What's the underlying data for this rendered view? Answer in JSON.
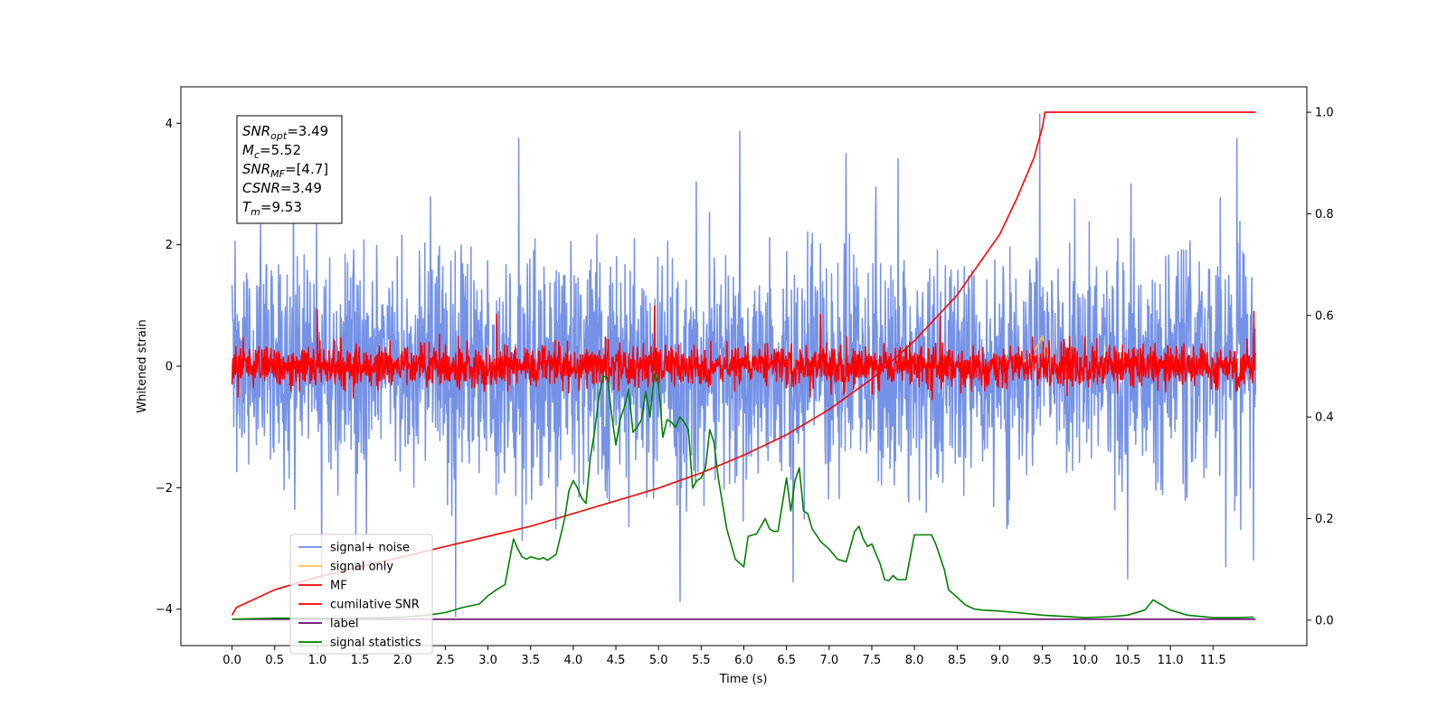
{
  "chart_data": {
    "type": "line",
    "xlabel": "Time (s)",
    "ylabel": "Whitened strain",
    "xlim": [
      -0.6,
      12.6
    ],
    "ylim": [
      -4.6,
      4.6
    ],
    "y2lim": [
      -0.05,
      1.05
    ],
    "x_ticks": [
      0.0,
      0.5,
      1.0,
      1.5,
      2.0,
      2.5,
      3.0,
      3.5,
      4.0,
      4.5,
      5.0,
      5.5,
      6.0,
      6.5,
      7.0,
      7.5,
      8.0,
      8.5,
      9.0,
      9.5,
      10.0,
      10.5,
      11.0,
      11.5
    ],
    "x_tick_labels": [
      "0.0",
      "0.5",
      "1.0",
      "1.5",
      "2.0",
      "2.5",
      "3.0",
      "3.5",
      "4.0",
      "4.5",
      "5.0",
      "5.5",
      "6.0",
      "6.5",
      "7.0",
      "7.5",
      "8.0",
      "8.5",
      "9.0",
      "9.5",
      "10.0",
      "10.5",
      "11.0",
      "11.5"
    ],
    "y_ticks": [
      -4,
      -2,
      0,
      2,
      4
    ],
    "y_tick_labels": [
      "−4",
      "−2",
      "0",
      "2",
      "4"
    ],
    "y2_ticks": [
      0.0,
      0.2,
      0.4,
      0.6,
      0.8,
      1.0
    ],
    "y2_tick_labels": [
      "0.0",
      "0.2",
      "0.4",
      "0.6",
      "0.8",
      "1.0"
    ],
    "legend_position": "lower-left",
    "series": [
      {
        "name": "signal+ noise",
        "color": "#6d8ce6",
        "axis": "left",
        "kind": "noise",
        "x_range": [
          0.0,
          12.0
        ],
        "std": 0.95,
        "samples": 2400,
        "spikes": [
          [
            0.72,
            3.3
          ],
          [
            1.05,
            -3.5
          ],
          [
            1.45,
            -2.9
          ],
          [
            2.62,
            -4.12
          ],
          [
            3.36,
            3.75
          ],
          [
            5.25,
            -3.87
          ],
          [
            5.95,
            3.87
          ],
          [
            6.58,
            -3.55
          ],
          [
            9.47,
            4.15
          ],
          [
            10.5,
            -3.5
          ],
          [
            11.65,
            -3.3
          ],
          [
            7.2,
            3.5
          ]
        ]
      },
      {
        "name": "signal only",
        "color": "#ffc14d",
        "axis": "left",
        "x": [
          9.2,
          9.35,
          9.45,
          9.5,
          9.53,
          9.6
        ],
        "y": [
          0.0,
          0.15,
          0.35,
          0.5,
          0.2,
          0.0
        ]
      },
      {
        "name": "MF",
        "color": "#ff0000",
        "axis": "left",
        "kind": "noise",
        "x_range": [
          0.0,
          12.0
        ],
        "std": 0.17,
        "samples": 2400,
        "spikes": [
          [
            0.0,
            1.0
          ],
          [
            1.0,
            0.93
          ],
          [
            3.1,
            0.85
          ],
          [
            4.95,
            0.99
          ],
          [
            6.9,
            0.85
          ],
          [
            8.3,
            0.82
          ],
          [
            11.98,
            0.9
          ],
          [
            0.0,
            -0.3
          ]
        ]
      },
      {
        "name": "cumilative SNR",
        "color": "#ff0000",
        "axis": "right",
        "x": [
          0.0,
          0.05,
          0.5,
          1.0,
          1.5,
          2.0,
          2.5,
          3.0,
          3.5,
          4.0,
          4.5,
          5.0,
          5.5,
          6.0,
          6.5,
          7.0,
          7.5,
          8.0,
          8.5,
          9.0,
          9.2,
          9.4,
          9.5,
          9.53,
          12.0
        ],
        "y": [
          0.01,
          0.025,
          0.06,
          0.085,
          0.105,
          0.125,
          0.145,
          0.165,
          0.185,
          0.21,
          0.235,
          0.26,
          0.29,
          0.325,
          0.365,
          0.415,
          0.475,
          0.55,
          0.64,
          0.76,
          0.83,
          0.91,
          0.97,
          1.0,
          1.0
        ]
      },
      {
        "name": "label",
        "color": "#6a0a6e",
        "axis": "right",
        "x": [
          0.0,
          12.0
        ],
        "y": [
          0.002,
          0.002
        ]
      },
      {
        "name": "signal statistics",
        "color": "#008000",
        "axis": "right",
        "x": [
          0.0,
          0.5,
          1.0,
          1.5,
          2.0,
          2.3,
          2.5,
          2.7,
          2.9,
          3.0,
          3.1,
          3.2,
          3.3,
          3.35,
          3.4,
          3.45,
          3.5,
          3.6,
          3.65,
          3.7,
          3.8,
          3.9,
          3.95,
          4.0,
          4.05,
          4.1,
          4.15,
          4.2,
          4.25,
          4.3,
          4.35,
          4.4,
          4.45,
          4.5,
          4.55,
          4.6,
          4.65,
          4.7,
          4.75,
          4.8,
          4.85,
          4.9,
          4.95,
          5.0,
          5.05,
          5.1,
          5.15,
          5.2,
          5.25,
          5.3,
          5.35,
          5.4,
          5.45,
          5.5,
          5.55,
          5.6,
          5.65,
          5.7,
          5.8,
          5.9,
          6.0,
          6.05,
          6.15,
          6.25,
          6.3,
          6.35,
          6.4,
          6.5,
          6.55,
          6.6,
          6.65,
          6.7,
          6.75,
          6.8,
          6.9,
          7.0,
          7.1,
          7.2,
          7.3,
          7.35,
          7.4,
          7.45,
          7.5,
          7.6,
          7.65,
          7.7,
          7.75,
          7.8,
          7.9,
          8.0,
          8.1,
          8.2,
          8.25,
          8.35,
          8.4,
          8.5,
          8.6,
          8.7,
          8.8,
          9.0,
          9.2,
          9.5,
          10.0,
          10.3,
          10.5,
          10.7,
          10.8,
          10.9,
          11.0,
          11.2,
          11.5,
          11.8,
          11.98
        ],
        "y": [
          0.002,
          0.004,
          0.004,
          0.004,
          0.006,
          0.01,
          0.015,
          0.025,
          0.032,
          0.048,
          0.06,
          0.07,
          0.16,
          0.14,
          0.125,
          0.12,
          0.125,
          0.12,
          0.123,
          0.118,
          0.13,
          0.2,
          0.255,
          0.275,
          0.26,
          0.24,
          0.23,
          0.32,
          0.37,
          0.44,
          0.48,
          0.478,
          0.405,
          0.345,
          0.395,
          0.42,
          0.455,
          0.37,
          0.38,
          0.395,
          0.45,
          0.4,
          0.485,
          0.465,
          0.36,
          0.395,
          0.39,
          0.38,
          0.4,
          0.39,
          0.375,
          0.26,
          0.275,
          0.28,
          0.3,
          0.375,
          0.35,
          0.28,
          0.18,
          0.12,
          0.105,
          0.165,
          0.17,
          0.2,
          0.18,
          0.175,
          0.175,
          0.28,
          0.215,
          0.275,
          0.3,
          0.215,
          0.21,
          0.18,
          0.155,
          0.14,
          0.12,
          0.115,
          0.175,
          0.185,
          0.16,
          0.145,
          0.15,
          0.11,
          0.08,
          0.078,
          0.088,
          0.08,
          0.08,
          0.168,
          0.168,
          0.168,
          0.15,
          0.1,
          0.06,
          0.045,
          0.03,
          0.022,
          0.02,
          0.018,
          0.015,
          0.01,
          0.005,
          0.007,
          0.01,
          0.02,
          0.04,
          0.03,
          0.02,
          0.01,
          0.005,
          0.005,
          0.006
        ]
      }
    ],
    "annotation": {
      "lines": [
        {
          "base": "SNR",
          "sub": "opt",
          "value": "=3.49"
        },
        {
          "base": "M",
          "sub": "c",
          "value": "=5.52"
        },
        {
          "base": "SNR",
          "sub": "MF",
          "value": "=[4.7]"
        },
        {
          "base": "CSNR",
          "sub": "",
          "value": "=3.49"
        },
        {
          "base": "T",
          "sub": "m",
          "value": "=9.53"
        }
      ]
    }
  }
}
